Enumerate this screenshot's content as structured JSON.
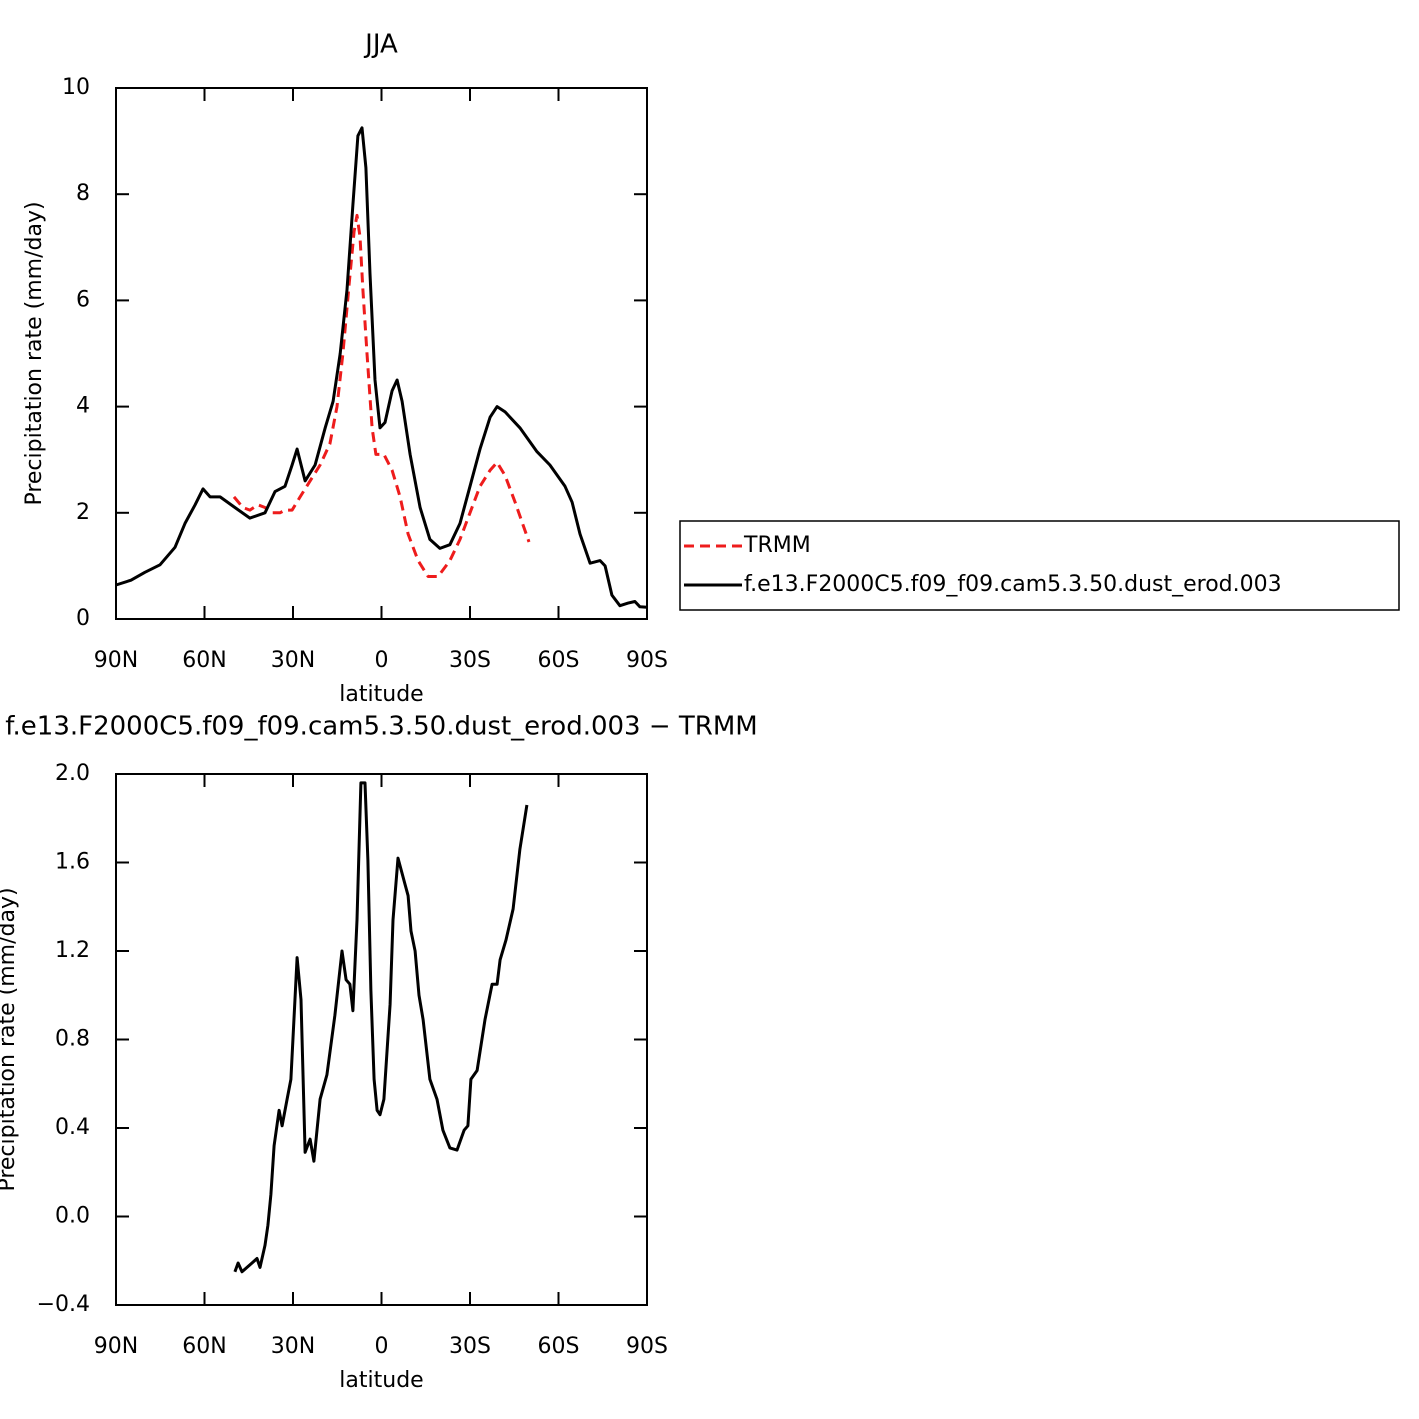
{
  "chart_data": [
    {
      "type": "line",
      "title": "JJA",
      "xlabel": "latitude",
      "ylabel": "Precipitation rate (mm/day)",
      "xlim": [
        90,
        -90
      ],
      "xticks": [
        {
          "value": 90,
          "label": "90N"
        },
        {
          "value": 60,
          "label": "60N"
        },
        {
          "value": 30,
          "label": "30N"
        },
        0,
        {
          "value": -30,
          "label": "30S"
        },
        {
          "value": -60,
          "label": "60S"
        },
        {
          "value": -90,
          "label": "90S"
        }
      ],
      "ylim": [
        0,
        10
      ],
      "yticks": [
        0,
        2,
        4,
        6,
        8,
        10
      ],
      "legend": "right",
      "series": [
        {
          "name": "TRMM",
          "color": "#ee1c1c",
          "linestyle": "dashed",
          "x": [
            50,
            47,
            44.6,
            41.9,
            39.5,
            37.1,
            34.4,
            32.7,
            30.3,
            27.6,
            24.2,
            20.8,
            17.5,
            15.1,
            13.1,
            11,
            9.3,
            8.3,
            7.3,
            6.3,
            4.9,
            3.2,
            1.9,
            -0.8,
            -3.6,
            -6.3,
            -9,
            -12.4,
            -15.8,
            -19.2,
            -23.2,
            -26.6,
            -30,
            -33.4,
            -36.8,
            -39.2,
            -41.9,
            -45.3,
            -50
          ],
          "values": [
            2.3,
            2.1,
            2.05,
            2.15,
            2.1,
            2.0,
            2.0,
            2.05,
            2.05,
            2.3,
            2.6,
            2.9,
            3.3,
            4.0,
            5.0,
            6.3,
            7.3,
            7.6,
            7.2,
            6.2,
            5.0,
            3.6,
            3.1,
            3.1,
            2.8,
            2.3,
            1.6,
            1.1,
            0.8,
            0.8,
            1.1,
            1.5,
            2.0,
            2.5,
            2.8,
            2.95,
            2.7,
            2.2,
            1.45
          ]
        },
        {
          "name": "f.e13.F2000C5.f09_f09.cam5.3.50.dust_erod.003",
          "color": "#000000",
          "linestyle": "solid",
          "x": [
            90,
            84.9,
            80.2,
            75.1,
            70,
            66.6,
            63.2,
            60.5,
            58.1,
            54.7,
            49.7,
            44.6,
            39.5,
            36.1,
            32.7,
            30.3,
            28.6,
            25.9,
            22.5,
            19.1,
            16.4,
            14,
            11.7,
            9.7,
            8,
            6.6,
            5.3,
            3.9,
            2.2,
            0.5,
            -1.2,
            -3.6,
            -5.3,
            -7,
            -9.7,
            -13.1,
            -16.4,
            -19.8,
            -23.2,
            -26.6,
            -30,
            -33.4,
            -36.8,
            -39.2,
            -41.9,
            -46.9,
            -52.7,
            -57.1,
            -62.2,
            -64.6,
            -67.3,
            -70.7,
            -74.1,
            -75.8,
            -78.1,
            -80.8,
            -83.6,
            -85.9,
            -87.6,
            -90
          ],
          "values": [
            0.64,
            0.73,
            0.88,
            1.02,
            1.35,
            1.8,
            2.15,
            2.45,
            2.3,
            2.3,
            2.1,
            1.9,
            2.0,
            2.4,
            2.5,
            2.9,
            3.2,
            2.6,
            2.9,
            3.6,
            4.1,
            5.0,
            6.2,
            7.8,
            9.1,
            9.25,
            8.5,
            6.5,
            4.5,
            3.6,
            3.7,
            4.3,
            4.5,
            4.1,
            3.1,
            2.1,
            1.5,
            1.33,
            1.4,
            1.8,
            2.5,
            3.2,
            3.8,
            4.0,
            3.9,
            3.6,
            3.15,
            2.9,
            2.5,
            2.2,
            1.6,
            1.05,
            1.1,
            1.0,
            0.45,
            0.25,
            0.3,
            0.33,
            0.23,
            0.22
          ]
        }
      ]
    },
    {
      "type": "line",
      "title": "f.e13.F2000C5.f09_f09.cam5.3.50.dust_erod.003 − TRMM",
      "xlabel": "latitude",
      "ylabel": "Precipitation rate (mm/day)",
      "xlim": [
        90,
        -90
      ],
      "xticks": [
        {
          "value": 90,
          "label": "90N"
        },
        {
          "value": 60,
          "label": "60N"
        },
        {
          "value": 30,
          "label": "30N"
        },
        0,
        {
          "value": -30,
          "label": "30S"
        },
        {
          "value": -60,
          "label": "60S"
        },
        {
          "value": -90,
          "label": "90S"
        }
      ],
      "ylim": [
        -0.4,
        2.0
      ],
      "yticks": [
        {
          "value": -0.4,
          "label": "−0.4"
        },
        {
          "value": 0,
          "label": "0.0"
        },
        0.4,
        0.8,
        1.2,
        1.6,
        {
          "value": 2.0,
          "label": "2.0"
        }
      ],
      "series": [
        {
          "color": "#000000",
          "linestyle": "solid",
          "x": [
            49.7,
            48.6,
            47.3,
            45.6,
            43.9,
            42.2,
            41.2,
            39.5,
            38.5,
            37.5,
            36.4,
            34.7,
            33.7,
            32,
            30.7,
            28.6,
            27.3,
            25.9,
            24.2,
            22.9,
            20.8,
            18.5,
            15.8,
            13.4,
            12,
            10.7,
            9.7,
            8.3,
            7,
            5.6,
            4.6,
            3.6,
            2.5,
            1.5,
            0.5,
            -0.8,
            -2.9,
            -3.9,
            -5.6,
            -8,
            -9,
            -10,
            -11.4,
            -12.7,
            -14.1,
            -16.4,
            -18.8,
            -20.8,
            -23.2,
            -25.6,
            -28,
            -29.3,
            -30.3,
            -32.4,
            -35.1,
            -37.5,
            -39.2,
            -40.2,
            -42.2,
            -44.6,
            -46.9,
            -49.3
          ],
          "values": [
            -0.25,
            -0.21,
            -0.25,
            -0.23,
            -0.21,
            -0.19,
            -0.23,
            -0.13,
            -0.04,
            0.1,
            0.32,
            0.48,
            0.41,
            0.53,
            0.62,
            1.17,
            0.98,
            0.29,
            0.35,
            0.25,
            0.53,
            0.64,
            0.91,
            1.2,
            1.07,
            1.05,
            0.93,
            1.34,
            1.96,
            1.96,
            1.61,
            1.02,
            0.62,
            0.48,
            0.46,
            0.53,
            0.96,
            1.34,
            1.62,
            1.5,
            1.45,
            1.29,
            1.2,
            1.0,
            0.89,
            0.62,
            0.53,
            0.39,
            0.31,
            0.3,
            0.39,
            0.41,
            0.62,
            0.66,
            0.89,
            1.05,
            1.05,
            1.16,
            1.25,
            1.39,
            1.66,
            1.86
          ]
        }
      ]
    }
  ]
}
